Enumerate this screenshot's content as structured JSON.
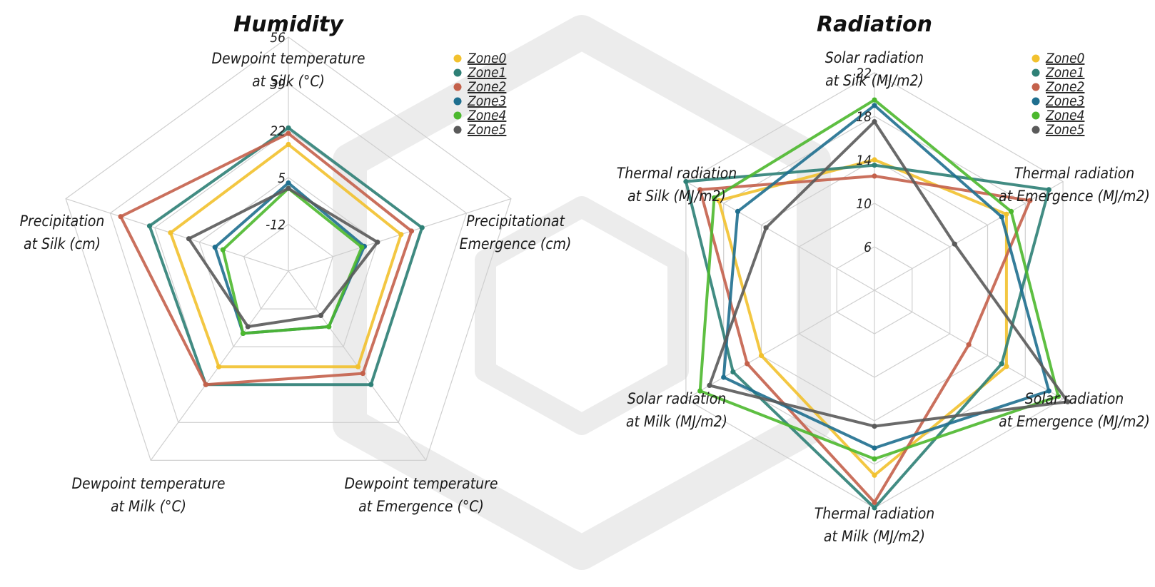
{
  "colors": {
    "Zone0": "#f2c12e",
    "Zone1": "#2e8076",
    "Zone2": "#c4614b",
    "Zone3": "#1f6f8f",
    "Zone4": "#4cb82e",
    "Zone5": "#5a5a5a"
  },
  "chart_data": [
    {
      "type": "radar",
      "title": "Humidity",
      "axes": [
        "Dewpoint temperature\nat Silk (°C)",
        "Precipitationat\nEmergence (cm)",
        "Dewpoint temperature\nat Emergence (°C)",
        "Dewpoint temperature\nat Milk (°C)",
        "Precipitation\nat Silk (cm)"
      ],
      "r_range": [
        -29,
        56
      ],
      "tick_values": [
        -12,
        5,
        22,
        39,
        56
      ],
      "tick_labels": [
        "-12",
        "5",
        "22",
        "39",
        "56"
      ],
      "legend_position": "top-right",
      "series": [
        {
          "name": "Zone0",
          "values": [
            17,
            14,
            14,
            14,
            16
          ]
        },
        {
          "name": "Zone1",
          "values": [
            23,
            22,
            22,
            22,
            24
          ]
        },
        {
          "name": "Zone2",
          "values": [
            21,
            18,
            17,
            22,
            35
          ]
        },
        {
          "name": "Zone3",
          "values": [
            3,
            0,
            -4,
            -1,
            -1
          ]
        },
        {
          "name": "Zone4",
          "values": [
            1,
            -1,
            -4,
            -1,
            -4
          ]
        },
        {
          "name": "Zone5",
          "values": [
            1,
            5,
            -9,
            -4,
            9
          ]
        }
      ]
    },
    {
      "type": "radar",
      "title": "Radiation",
      "axes": [
        "Solar radiation\nat Silk (MJ/m2)",
        "Thermal radiation\nat Emergence (MJ/m2)",
        "Solar radiation\nat Emergence (MJ/m2)",
        "Thermal radiation\nat Milk (MJ/m2)",
        "Solar radiation\nat Milk (MJ/m2)",
        "Thermal radiation\nat Silk (MJ/m2)"
      ],
      "r_range": [
        2,
        22
      ],
      "tick_values": [
        6,
        10,
        14,
        18,
        22
      ],
      "tick_labels": [
        "6",
        "10",
        "14",
        "18",
        "22"
      ],
      "legend_position": "top-right",
      "series": [
        {
          "name": "Zone0",
          "values": [
            14,
            16,
            16,
            19,
            14,
            18.5
          ]
        },
        {
          "name": "Zone1",
          "values": [
            13.5,
            20.5,
            15.5,
            22,
            17,
            22
          ]
        },
        {
          "name": "Zone2",
          "values": [
            12.5,
            18.5,
            12,
            21.5,
            15.5,
            20.5
          ]
        },
        {
          "name": "Zone3",
          "values": [
            19,
            15.5,
            20.5,
            16.5,
            18,
            16.5
          ]
        },
        {
          "name": "Zone4",
          "values": [
            19.5,
            16.5,
            21.5,
            17.5,
            20.5,
            19
          ]
        },
        {
          "name": "Zone5",
          "values": [
            17.5,
            10.5,
            22.5,
            14.5,
            19.5,
            13.5
          ]
        }
      ]
    }
  ]
}
